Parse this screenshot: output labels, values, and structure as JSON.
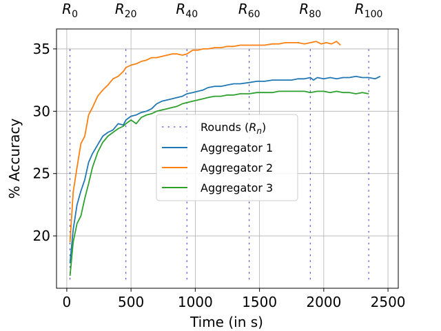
{
  "chart_data": {
    "type": "line",
    "title": "",
    "xlabel": "Time (in s)",
    "ylabel": "% Accuracy",
    "xlim": [
      -80,
      2580
    ],
    "ylim": [
      15.8,
      36.6
    ],
    "xticks": [
      0,
      500,
      1000,
      1500,
      2000,
      2500
    ],
    "yticks": [
      20,
      25,
      30,
      35
    ],
    "grid": true,
    "legend": {
      "placement": "center-right",
      "entries": [
        "Rounds (Rn)",
        "Aggregator 1",
        "Aggregator 2",
        "Aggregator 3"
      ]
    },
    "rounds": [
      {
        "prefix": "R",
        "sub": "0",
        "x": 25
      },
      {
        "prefix": "R",
        "sub": "20",
        "x": 460
      },
      {
        "prefix": "R",
        "sub": "40",
        "x": 935
      },
      {
        "prefix": "R",
        "sub": "60",
        "x": 1420
      },
      {
        "prefix": "R",
        "sub": "80",
        "x": 1895
      },
      {
        "prefix": "R",
        "sub": "100",
        "x": 2350
      }
    ],
    "rounds_ylim": [
      16.5,
      35.3
    ],
    "series": [
      {
        "name": "Aggregator 1",
        "color": "#1f77b4",
        "x": [
          25,
          50,
          80,
          110,
          140,
          170,
          200,
          240,
          280,
          320,
          360,
          400,
          440,
          460,
          500,
          540,
          580,
          620,
          660,
          700,
          740,
          780,
          820,
          860,
          900,
          935,
          980,
          1020,
          1060,
          1100,
          1150,
          1200,
          1250,
          1300,
          1350,
          1420,
          1480,
          1540,
          1600,
          1650,
          1700,
          1750,
          1800,
          1850,
          1895,
          1920,
          1950,
          2000,
          2050,
          2100,
          2150,
          2200,
          2250,
          2300,
          2350,
          2400,
          2440
        ],
        "y": [
          17.8,
          20.5,
          22.5,
          23.6,
          24.5,
          25.9,
          26.6,
          27.3,
          28.0,
          28.3,
          28.5,
          29.0,
          28.9,
          29.3,
          29.6,
          29.7,
          29.9,
          30.0,
          30.2,
          30.6,
          30.8,
          30.9,
          31.0,
          31.1,
          31.2,
          31.4,
          31.5,
          31.6,
          31.7,
          31.9,
          32.0,
          32.0,
          32.1,
          32.2,
          32.2,
          32.3,
          32.4,
          32.4,
          32.5,
          32.5,
          32.5,
          32.5,
          32.6,
          32.6,
          32.7,
          32.5,
          32.7,
          32.6,
          32.7,
          32.6,
          32.7,
          32.7,
          32.8,
          32.7,
          32.7,
          32.6,
          32.8
        ]
      },
      {
        "name": "Aggregator 2",
        "color": "#ff7f0e",
        "x": [
          25,
          50,
          80,
          110,
          140,
          170,
          200,
          240,
          280,
          320,
          360,
          400,
          440,
          460,
          500,
          540,
          580,
          620,
          660,
          700,
          740,
          780,
          820,
          860,
          900,
          935,
          980,
          1020,
          1060,
          1100,
          1150,
          1200,
          1250,
          1300,
          1350,
          1420,
          1480,
          1540,
          1600,
          1650,
          1700,
          1750,
          1800,
          1850,
          1895,
          1940,
          1980,
          2020,
          2060,
          2100,
          2130
        ],
        "y": [
          19.5,
          23.5,
          25.5,
          27.4,
          28.0,
          29.7,
          30.3,
          31.2,
          31.7,
          32.1,
          32.6,
          32.8,
          33.2,
          33.5,
          33.7,
          33.8,
          34.0,
          34.1,
          34.3,
          34.3,
          34.4,
          34.5,
          34.6,
          34.6,
          34.5,
          34.6,
          34.9,
          34.9,
          35.0,
          35.0,
          35.1,
          35.1,
          35.2,
          35.2,
          35.3,
          35.3,
          35.3,
          35.3,
          35.4,
          35.4,
          35.5,
          35.5,
          35.5,
          35.4,
          35.5,
          35.6,
          35.4,
          35.5,
          35.4,
          35.6,
          35.3
        ]
      },
      {
        "name": "Aggregator 3",
        "color": "#2ca02c",
        "x": [
          25,
          50,
          80,
          110,
          140,
          170,
          200,
          240,
          280,
          320,
          360,
          400,
          440,
          460,
          500,
          540,
          580,
          620,
          660,
          700,
          740,
          780,
          820,
          860,
          900,
          935,
          980,
          1020,
          1060,
          1100,
          1150,
          1200,
          1250,
          1300,
          1350,
          1420,
          1480,
          1540,
          1600,
          1650,
          1700,
          1750,
          1800,
          1850,
          1895,
          1950,
          2000,
          2050,
          2100,
          2150,
          2200,
          2250,
          2300,
          2350
        ],
        "y": [
          16.8,
          19.5,
          21.0,
          21.6,
          23.0,
          24.2,
          25.5,
          26.7,
          27.5,
          28.0,
          28.3,
          28.6,
          28.8,
          29.0,
          29.3,
          29.0,
          29.5,
          29.7,
          29.8,
          30.0,
          30.1,
          30.2,
          30.3,
          30.4,
          30.6,
          30.7,
          30.8,
          30.9,
          31.0,
          31.1,
          31.2,
          31.2,
          31.3,
          31.3,
          31.4,
          31.4,
          31.5,
          31.5,
          31.5,
          31.6,
          31.6,
          31.6,
          31.6,
          31.6,
          31.5,
          31.6,
          31.6,
          31.5,
          31.6,
          31.5,
          31.5,
          31.4,
          31.5,
          31.4
        ]
      }
    ]
  }
}
